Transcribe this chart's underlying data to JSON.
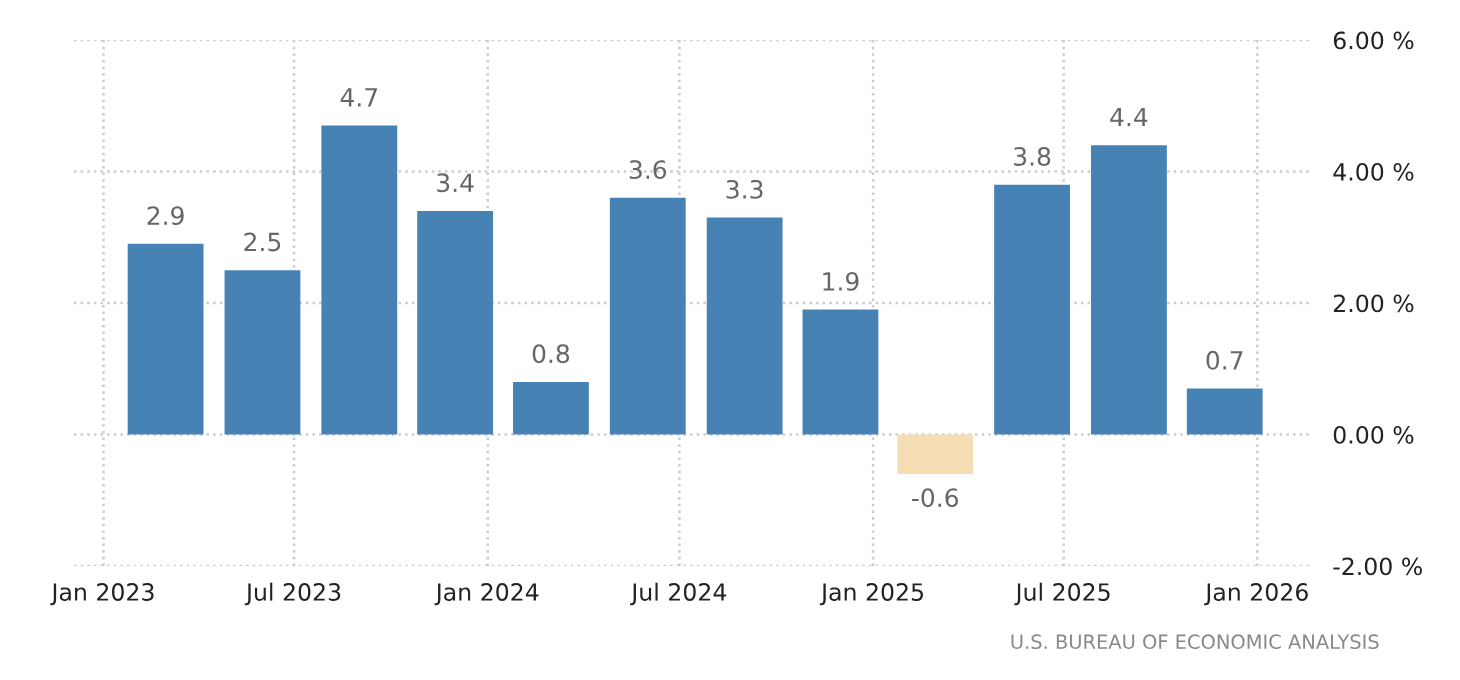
{
  "chart_data": {
    "type": "bar",
    "x": [
      "2023-03-01",
      "2023-06-01",
      "2023-09-01",
      "2023-12-01",
      "2024-03-01",
      "2024-06-01",
      "2024-09-01",
      "2024-12-01",
      "2025-03-01",
      "2025-06-01",
      "2025-09-01",
      "2025-12-01"
    ],
    "values": [
      2.9,
      2.5,
      4.7,
      3.4,
      0.8,
      3.6,
      3.3,
      1.9,
      -0.6,
      3.8,
      4.4,
      0.7
    ],
    "colors": [
      "#4682b4",
      "#4682b4",
      "#4682b4",
      "#4682b4",
      "#4682b4",
      "#4682b4",
      "#4682b4",
      "#4682b4",
      "#f5deb3",
      "#4682b4",
      "#4682b4",
      "#4682b4"
    ],
    "data_labels": true,
    "xlim": [
      "2022-12-04",
      "2026-02-20"
    ],
    "xticks": [
      {
        "value": "2023-01-01",
        "label": "Jan 2023"
      },
      {
        "value": "2023-07-01",
        "label": "Jul 2023"
      },
      {
        "value": "2024-01-01",
        "label": "Jan 2024"
      },
      {
        "value": "2024-07-01",
        "label": "Jul 2024"
      },
      {
        "value": "2025-01-01",
        "label": "Jan 2025"
      },
      {
        "value": "2025-07-01",
        "label": "Jul 2025"
      },
      {
        "value": "2026-01-01",
        "label": "Jan 2026"
      }
    ],
    "ylim": [
      -2,
      6
    ],
    "yticks": [
      {
        "value": -2,
        "label": "-2.00 %"
      },
      {
        "value": 0,
        "label": "0.00 %"
      },
      {
        "value": 2,
        "label": "2.00 %"
      },
      {
        "value": 4,
        "label": "4.00 %"
      },
      {
        "value": 6,
        "label": "6.00 %"
      }
    ],
    "grid": true,
    "annotations": [
      "U.S. BUREAU OF ECONOMIC ANALYSIS"
    ]
  }
}
